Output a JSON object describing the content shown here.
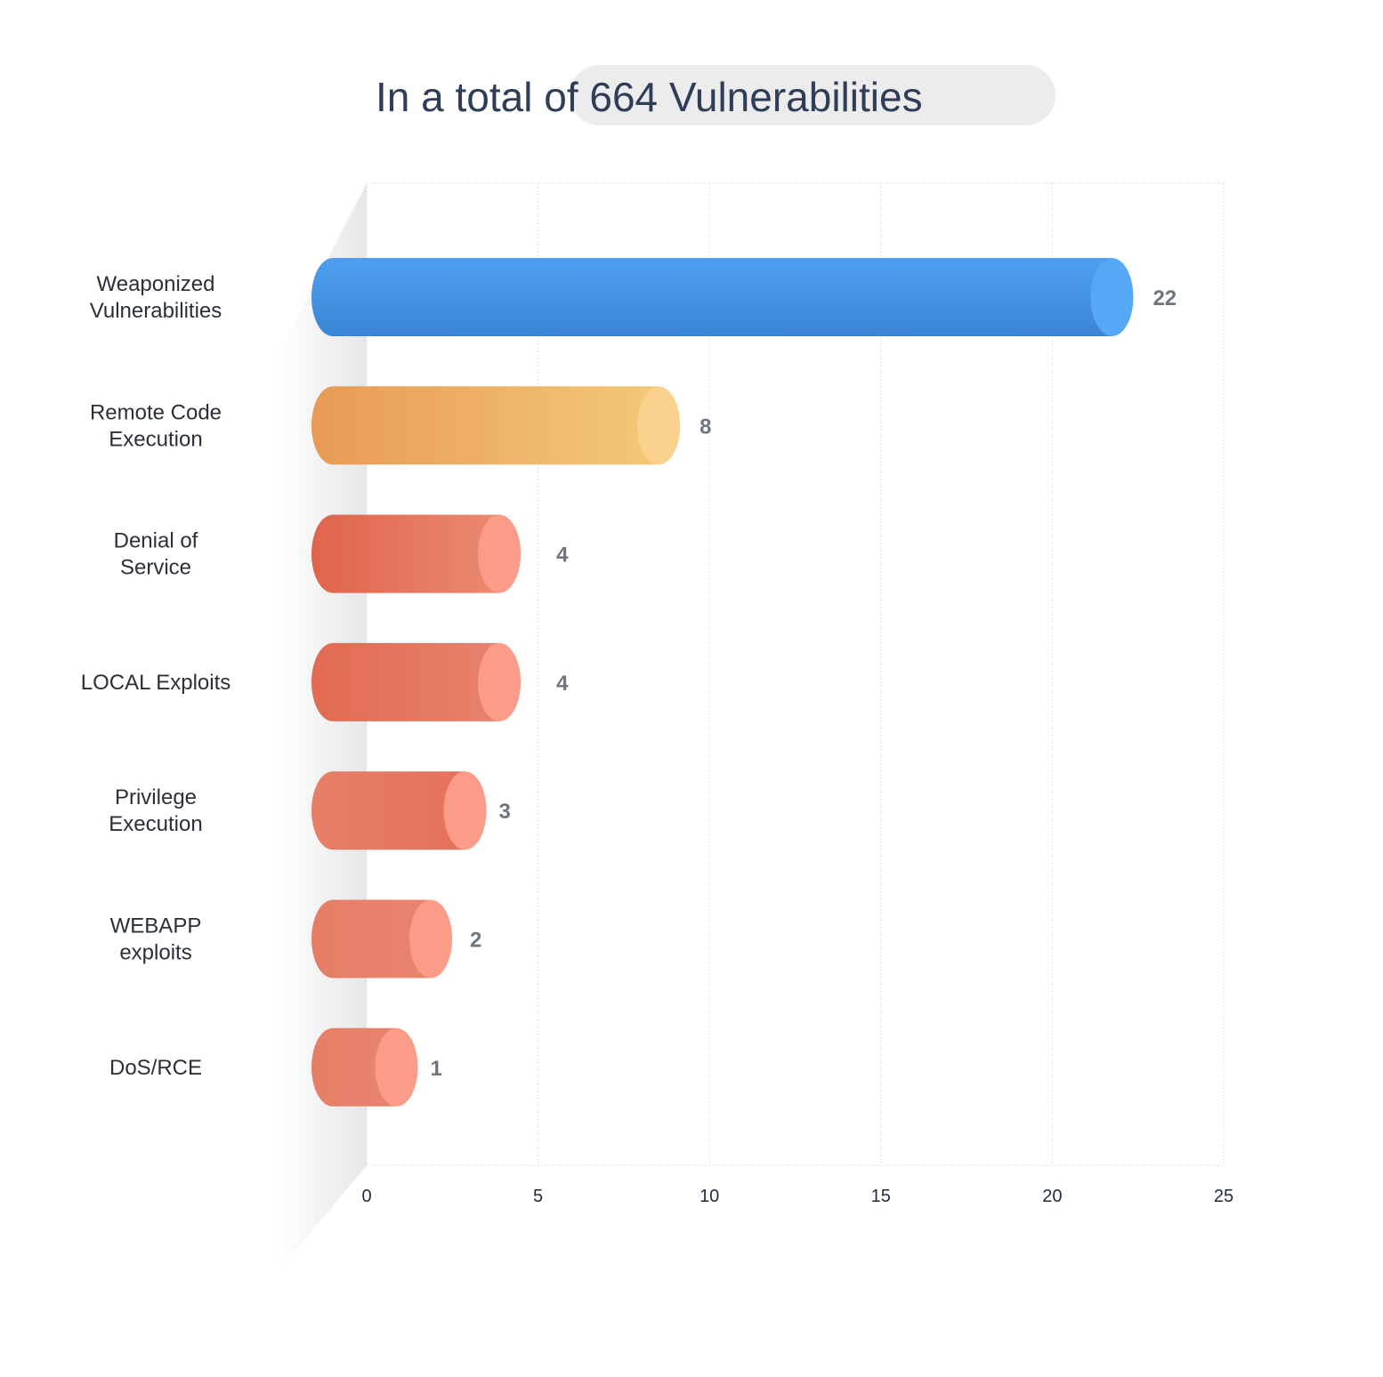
{
  "chart_data": {
    "type": "bar",
    "orientation": "horizontal",
    "title": "In a total of 664 Vulnerabilities",
    "categories": [
      [
        "Weaponized",
        "Vulnerabilities"
      ],
      [
        "Remote Code",
        "Execution"
      ],
      [
        "Denial of",
        "Service"
      ],
      [
        "LOCAL Exploits"
      ],
      [
        "Privilege",
        "Execution"
      ],
      [
        "WEBAPP",
        "exploits"
      ],
      [
        "DoS/RCE"
      ]
    ],
    "values": [
      22,
      8,
      4,
      4,
      3,
      2,
      1
    ],
    "value_labels": [
      "22",
      "8",
      "4",
      "4",
      "3",
      "2",
      "1"
    ],
    "xlim": [
      0,
      25
    ],
    "xticks": [
      0,
      5,
      10,
      15,
      20,
      25
    ],
    "xtick_labels": [
      "0",
      "5",
      "10",
      "15",
      "20",
      "25"
    ],
    "grid": true,
    "colors": {
      "weaponized": "#4a97e6",
      "remote_code": "#eec06d",
      "coral": "#e5725a",
      "coral_cap": "#fb9c89"
    }
  }
}
